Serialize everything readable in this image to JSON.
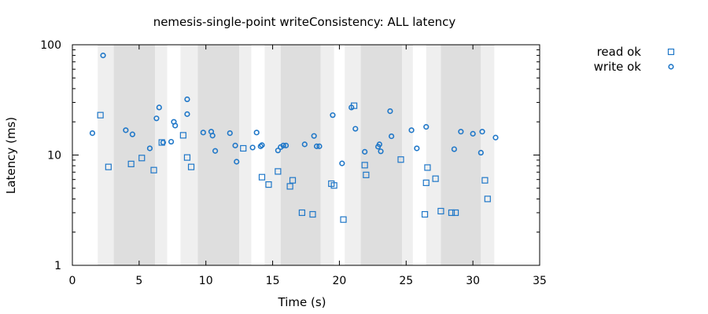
{
  "chart_data": {
    "type": "scatter",
    "title": "nemesis-single-point writeConsistency: ALL latency",
    "xlabel": "Time (s)",
    "ylabel": "Latency (ms)",
    "xlim": [
      0,
      35
    ],
    "ylim": [
      1,
      100
    ],
    "yscale": "log",
    "x_ticks": [
      "0",
      "5",
      "10",
      "15",
      "20",
      "25",
      "30",
      "35"
    ],
    "y_ticks": [
      "1",
      "10",
      "100"
    ],
    "x_tick_values": [
      0,
      5,
      10,
      15,
      20,
      25,
      30,
      35
    ],
    "y_tick_values": [
      1,
      10,
      100
    ],
    "legend_position": "top-right, outside plot",
    "colors": {
      "series": "#1f77c8",
      "band_light": "#efefef",
      "band_dark": "#dedede",
      "axis": "#000000"
    },
    "nemesis_bands": [
      {
        "start": 1.9,
        "end": 3.1,
        "shade": "light"
      },
      {
        "start": 3.1,
        "end": 6.2,
        "shade": "dark"
      },
      {
        "start": 6.2,
        "end": 7.1,
        "shade": "light"
      },
      {
        "start": 8.1,
        "end": 9.4,
        "shade": "light"
      },
      {
        "start": 9.4,
        "end": 12.5,
        "shade": "dark"
      },
      {
        "start": 12.5,
        "end": 13.4,
        "shade": "light"
      },
      {
        "start": 14.4,
        "end": 15.6,
        "shade": "light"
      },
      {
        "start": 15.6,
        "end": 18.6,
        "shade": "dark"
      },
      {
        "start": 18.6,
        "end": 19.6,
        "shade": "light"
      },
      {
        "start": 20.4,
        "end": 21.6,
        "shade": "light"
      },
      {
        "start": 21.6,
        "end": 24.7,
        "shade": "dark"
      },
      {
        "start": 24.7,
        "end": 25.5,
        "shade": "light"
      },
      {
        "start": 26.5,
        "end": 27.6,
        "shade": "light"
      },
      {
        "start": 27.6,
        "end": 30.6,
        "shade": "dark"
      },
      {
        "start": 30.6,
        "end": 31.6,
        "shade": "light"
      }
    ],
    "series": [
      {
        "name": "read ok",
        "marker": "square",
        "points": [
          [
            2.1,
            23
          ],
          [
            2.7,
            7.8
          ],
          [
            4.4,
            8.3
          ],
          [
            5.2,
            9.4
          ],
          [
            6.1,
            7.3
          ],
          [
            6.7,
            13
          ],
          [
            8.3,
            15.1
          ],
          [
            8.6,
            9.5
          ],
          [
            8.9,
            7.8
          ],
          [
            12.8,
            11.5
          ],
          [
            14.2,
            6.3
          ],
          [
            14.7,
            5.4
          ],
          [
            15.4,
            7.1
          ],
          [
            16.3,
            5.2
          ],
          [
            16.5,
            5.9
          ],
          [
            17.2,
            3.0
          ],
          [
            18.0,
            2.9
          ],
          [
            19.4,
            5.5
          ],
          [
            19.6,
            5.3
          ],
          [
            20.3,
            2.6
          ],
          [
            21.1,
            28
          ],
          [
            21.9,
            8.1
          ],
          [
            22.0,
            6.6
          ],
          [
            24.6,
            9.1
          ],
          [
            26.4,
            2.9
          ],
          [
            26.6,
            7.7
          ],
          [
            26.5,
            5.6
          ],
          [
            27.2,
            6.1
          ],
          [
            27.6,
            3.1
          ],
          [
            28.4,
            3.0
          ],
          [
            28.7,
            3.0
          ],
          [
            30.9,
            5.9
          ],
          [
            31.1,
            4.0
          ]
        ]
      },
      {
        "name": "write ok",
        "marker": "circle",
        "points": [
          [
            1.5,
            15.8
          ],
          [
            2.3,
            80
          ],
          [
            4.0,
            16.8
          ],
          [
            4.5,
            15.4
          ],
          [
            5.8,
            11.5
          ],
          [
            6.3,
            21.5
          ],
          [
            6.5,
            27
          ],
          [
            6.8,
            13
          ],
          [
            7.4,
            13.2
          ],
          [
            7.6,
            20
          ],
          [
            7.7,
            18.5
          ],
          [
            8.6,
            32
          ],
          [
            8.6,
            23.5
          ],
          [
            9.8,
            16
          ],
          [
            10.4,
            16.3
          ],
          [
            10.5,
            15
          ],
          [
            10.7,
            10.9
          ],
          [
            11.8,
            15.8
          ],
          [
            12.2,
            12.2
          ],
          [
            12.3,
            8.7
          ],
          [
            13.5,
            11.7
          ],
          [
            13.8,
            16
          ],
          [
            14.1,
            12
          ],
          [
            14.2,
            12.3
          ],
          [
            15.4,
            11
          ],
          [
            15.6,
            11.8
          ],
          [
            15.8,
            12.2
          ],
          [
            16.0,
            12.2
          ],
          [
            17.4,
            12.5
          ],
          [
            18.1,
            14.9
          ],
          [
            18.3,
            12
          ],
          [
            18.5,
            12
          ],
          [
            19.5,
            23
          ],
          [
            20.2,
            8.4
          ],
          [
            20.9,
            27
          ],
          [
            21.2,
            17.3
          ],
          [
            21.9,
            10.7
          ],
          [
            22.9,
            11.9
          ],
          [
            23.0,
            12.5
          ],
          [
            23.1,
            10.8
          ],
          [
            23.8,
            25
          ],
          [
            23.9,
            14.8
          ],
          [
            25.4,
            16.8
          ],
          [
            25.8,
            11.5
          ],
          [
            26.5,
            18
          ],
          [
            28.6,
            11.3
          ],
          [
            29.1,
            16.3
          ],
          [
            30.0,
            15.6
          ],
          [
            30.6,
            10.5
          ],
          [
            30.7,
            16.3
          ],
          [
            31.7,
            14.4
          ]
        ]
      }
    ]
  }
}
